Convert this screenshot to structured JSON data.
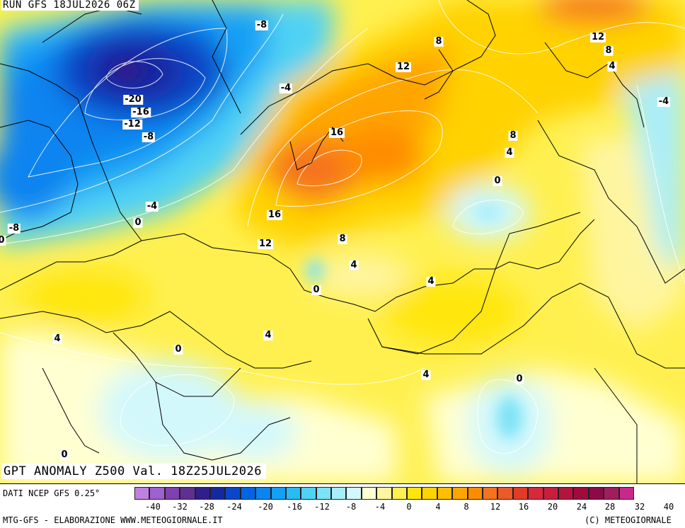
{
  "header": {
    "run_label": "RUN GFS 18JUL2026 06Z"
  },
  "map": {
    "title": "GPT ANOMALY Z500 Val. 18Z25JUL2026",
    "contour_labels": [
      "-8",
      "-20",
      "-16",
      "-12",
      "-8",
      "-4",
      "-4",
      "-8",
      "0",
      "12",
      "8",
      "16",
      "16",
      "12",
      "8",
      "4",
      "0",
      "8",
      "4",
      "0",
      "12",
      "8",
      "4",
      "-4",
      "4",
      "4",
      "4",
      "0",
      "0",
      "4",
      "0",
      "0"
    ]
  },
  "footer": {
    "data_source": "DATI NCEP GFS 0.25°",
    "credit": "MTG-GFS - ELABORAZIONE WWW.METEOGIORNALE.IT",
    "copyright": "(C) METEOGIORNALE"
  },
  "colorbar": {
    "colors": [
      "#c080e0",
      "#a060d0",
      "#8040b0",
      "#603090",
      "#301e8c",
      "#1428a0",
      "#0a46c8",
      "#0064e6",
      "#0a84f0",
      "#14a0f5",
      "#28bcf5",
      "#50d2f5",
      "#7ce2f5",
      "#a8eefa",
      "#d2f8fc",
      "#ffffd2",
      "#fff5a0",
      "#fff050",
      "#ffe60a",
      "#ffd200",
      "#ffbe00",
      "#ffa500",
      "#ff8c00",
      "#f5731e",
      "#eb5a28",
      "#e13c28",
      "#d7283c",
      "#c81e3c",
      "#b4143c",
      "#a00a3c",
      "#8c0a46",
      "#a01e5a",
      "#c8288c"
    ],
    "tick_labels": [
      "-40",
      "-32",
      "-28",
      "-24",
      "-20",
      "-16",
      "-12",
      "-8",
      "-4",
      "0",
      "4",
      "8",
      "12",
      "16",
      "20",
      "24",
      "28",
      "32",
      "40"
    ]
  }
}
